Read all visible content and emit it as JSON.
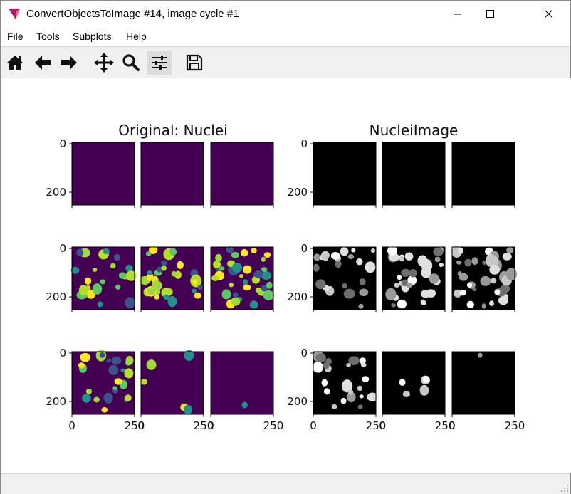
{
  "window": {
    "title": "ConvertObjectsToImage #14, image cycle #1",
    "minimize_glyph": "─",
    "close_glyph": "✕"
  },
  "menu": {
    "items": [
      "File",
      "Tools",
      "Subplots",
      "Help"
    ]
  },
  "toolbar": {
    "tools": [
      {
        "icon": "home-icon"
      },
      {
        "icon": "back-arrow-icon"
      },
      {
        "icon": "forward-arrow-icon"
      },
      {
        "icon": "pan-icon"
      },
      {
        "icon": "zoom-icon"
      },
      {
        "icon": "configure-subplots-icon",
        "active": true
      },
      {
        "icon": "save-icon"
      }
    ]
  },
  "figure": {
    "left_title": "Original: Nuclei",
    "right_title": "NucleiImage",
    "y_tick_labels": [
      "0",
      "200"
    ],
    "x_tick_labels": [
      "0",
      "250"
    ],
    "colormap_left": {
      "background": "#440154",
      "palette": [
        "#fde725",
        "#5ec962",
        "#21918c",
        "#b5de2b",
        "#3b528b",
        "#a0da39"
      ]
    },
    "colormap_right": {
      "background": "#000000",
      "palette": [
        "#ffffff",
        "#c8c8c8",
        "#9a9a9a",
        "#e0e0e0",
        "#6e6e6e"
      ]
    },
    "panel_density": [
      [
        0,
        0,
        0
      ],
      [
        0.55,
        0.8,
        0.9
      ],
      [
        0.6,
        0.12,
        0.03
      ]
    ]
  }
}
